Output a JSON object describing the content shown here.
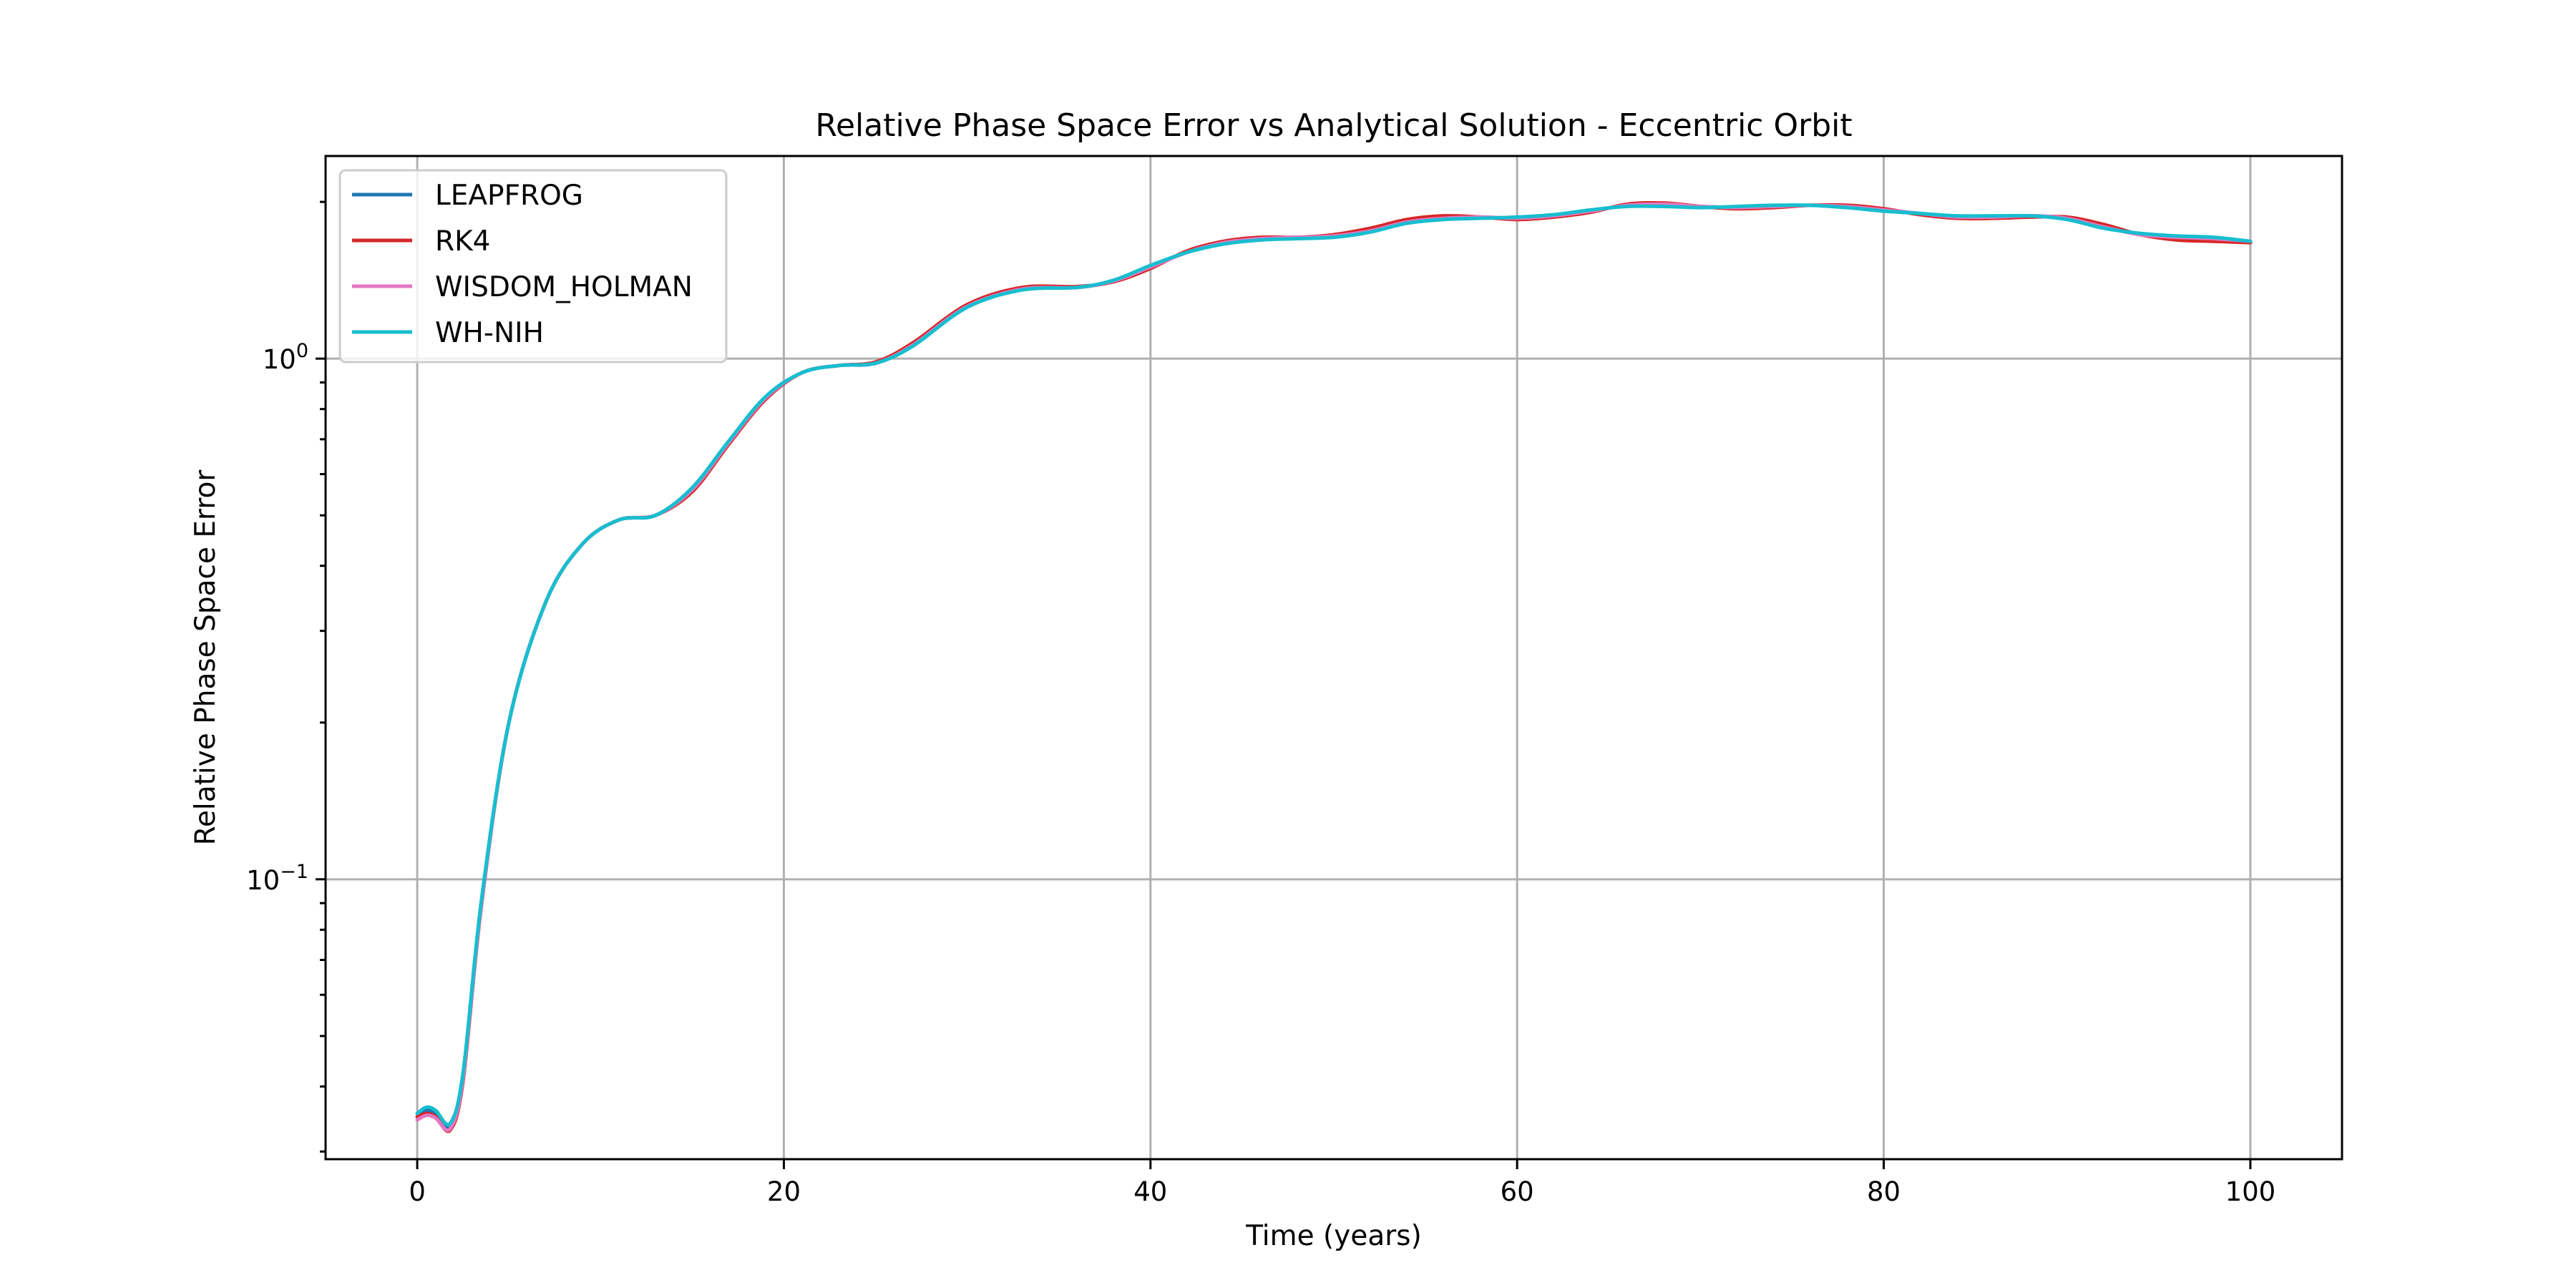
{
  "chart_data": {
    "type": "line",
    "title": "Relative Phase Space Error vs Analytical Solution - Eccentric Orbit",
    "xlabel": "Time (years)",
    "ylabel": "Relative Phase Space Error",
    "xlim": [
      -5,
      105
    ],
    "ylim": [
      0.029,
      2.45
    ],
    "yscale": "log",
    "grid": true,
    "legend_position": "upper-left",
    "xticks": [
      0,
      20,
      40,
      60,
      80,
      100
    ],
    "xtick_labels": [
      "0",
      "20",
      "40",
      "60",
      "80",
      "100"
    ],
    "yticks": [
      0.1,
      1.0
    ],
    "ytick_labels": [
      {
        "base": "10",
        "exp": "−1"
      },
      {
        "base": "10",
        "exp": "0"
      }
    ],
    "series": [
      {
        "name": "LEAPFROG",
        "color": "#1f77b4",
        "x": [
          0,
          0.5,
          1,
          1.8,
          2.5,
          3.5,
          5,
          7,
          9,
          11,
          13,
          15,
          17,
          19,
          21,
          23,
          25,
          27,
          30,
          33,
          36,
          38,
          40,
          42,
          44,
          46,
          48,
          50,
          52,
          54,
          56,
          58,
          60,
          62,
          64,
          66,
          68,
          70,
          72,
          74,
          76,
          78,
          80,
          82,
          84,
          86,
          88,
          90,
          92,
          94,
          96,
          98,
          100
        ],
        "y": [
          0.035,
          0.036,
          0.0355,
          0.0335,
          0.042,
          0.09,
          0.2,
          0.34,
          0.44,
          0.49,
          0.5,
          0.56,
          0.69,
          0.84,
          0.94,
          0.97,
          0.98,
          1.06,
          1.26,
          1.36,
          1.37,
          1.41,
          1.5,
          1.6,
          1.67,
          1.7,
          1.71,
          1.72,
          1.76,
          1.83,
          1.86,
          1.87,
          1.86,
          1.88,
          1.92,
          1.97,
          1.98,
          1.96,
          1.95,
          1.96,
          1.97,
          1.96,
          1.93,
          1.9,
          1.87,
          1.87,
          1.88,
          1.86,
          1.79,
          1.73,
          1.71,
          1.7,
          1.68
        ]
      },
      {
        "name": "RK4",
        "color": "#d62728",
        "x": [
          0,
          0.5,
          1,
          1.8,
          2.5,
          3.5,
          5,
          7,
          9,
          11,
          13,
          15,
          17,
          19,
          21,
          23,
          25,
          27,
          30,
          33,
          36,
          38,
          40,
          42,
          44,
          46,
          48,
          50,
          52,
          54,
          56,
          58,
          60,
          62,
          64,
          66,
          68,
          70,
          72,
          74,
          76,
          78,
          80,
          82,
          84,
          86,
          88,
          90,
          92,
          94,
          96,
          98,
          100
        ],
        "y": [
          0.035,
          0.0355,
          0.035,
          0.033,
          0.041,
          0.089,
          0.2,
          0.34,
          0.44,
          0.49,
          0.5,
          0.555,
          0.685,
          0.835,
          0.94,
          0.97,
          0.985,
          1.07,
          1.27,
          1.37,
          1.375,
          1.405,
          1.49,
          1.61,
          1.68,
          1.71,
          1.71,
          1.73,
          1.78,
          1.85,
          1.88,
          1.87,
          1.85,
          1.87,
          1.91,
          1.98,
          1.99,
          1.96,
          1.94,
          1.95,
          1.97,
          1.97,
          1.94,
          1.89,
          1.86,
          1.86,
          1.87,
          1.87,
          1.81,
          1.73,
          1.69,
          1.68,
          1.67
        ]
      },
      {
        "name": "WISDOM_HOLMAN",
        "color": "#e377c2",
        "x": [
          0,
          0.5,
          1,
          1.8,
          2.5,
          3.5,
          5,
          7,
          9,
          11,
          13,
          15,
          17,
          19,
          21,
          23,
          25,
          27,
          30,
          33,
          36,
          38,
          40,
          42,
          44,
          46,
          48,
          50,
          52,
          54,
          56,
          58,
          60,
          62,
          64,
          66,
          68,
          70,
          72,
          74,
          76,
          78,
          80,
          82,
          84,
          86,
          88,
          90,
          92,
          94,
          96,
          98,
          100
        ],
        "y": [
          0.0345,
          0.0352,
          0.0348,
          0.0332,
          0.0415,
          0.0895,
          0.2,
          0.34,
          0.44,
          0.49,
          0.5,
          0.56,
          0.69,
          0.84,
          0.94,
          0.97,
          0.98,
          1.06,
          1.26,
          1.36,
          1.37,
          1.41,
          1.5,
          1.6,
          1.67,
          1.7,
          1.71,
          1.72,
          1.76,
          1.83,
          1.86,
          1.87,
          1.86,
          1.88,
          1.92,
          1.97,
          1.98,
          1.96,
          1.95,
          1.96,
          1.97,
          1.96,
          1.93,
          1.9,
          1.87,
          1.87,
          1.88,
          1.86,
          1.79,
          1.73,
          1.71,
          1.7,
          1.68
        ]
      },
      {
        "name": "WH-NIH",
        "color": "#17becf",
        "x": [
          0,
          0.5,
          1,
          1.8,
          2.5,
          3.5,
          5,
          7,
          9,
          11,
          13,
          15,
          17,
          19,
          21,
          23,
          25,
          27,
          30,
          33,
          36,
          38,
          40,
          42,
          44,
          46,
          48,
          50,
          52,
          54,
          56,
          58,
          60,
          62,
          64,
          66,
          68,
          70,
          72,
          74,
          76,
          78,
          80,
          82,
          84,
          86,
          88,
          90,
          92,
          94,
          96,
          98,
          100
        ],
        "y": [
          0.0355,
          0.0365,
          0.036,
          0.034,
          0.0425,
          0.091,
          0.2,
          0.34,
          0.44,
          0.49,
          0.5,
          0.565,
          0.695,
          0.845,
          0.94,
          0.97,
          0.98,
          1.055,
          1.255,
          1.355,
          1.37,
          1.415,
          1.51,
          1.6,
          1.66,
          1.69,
          1.7,
          1.71,
          1.75,
          1.82,
          1.85,
          1.86,
          1.87,
          1.89,
          1.93,
          1.96,
          1.96,
          1.95,
          1.96,
          1.97,
          1.97,
          1.95,
          1.92,
          1.9,
          1.88,
          1.88,
          1.88,
          1.85,
          1.78,
          1.74,
          1.72,
          1.71,
          1.68
        ]
      }
    ]
  }
}
